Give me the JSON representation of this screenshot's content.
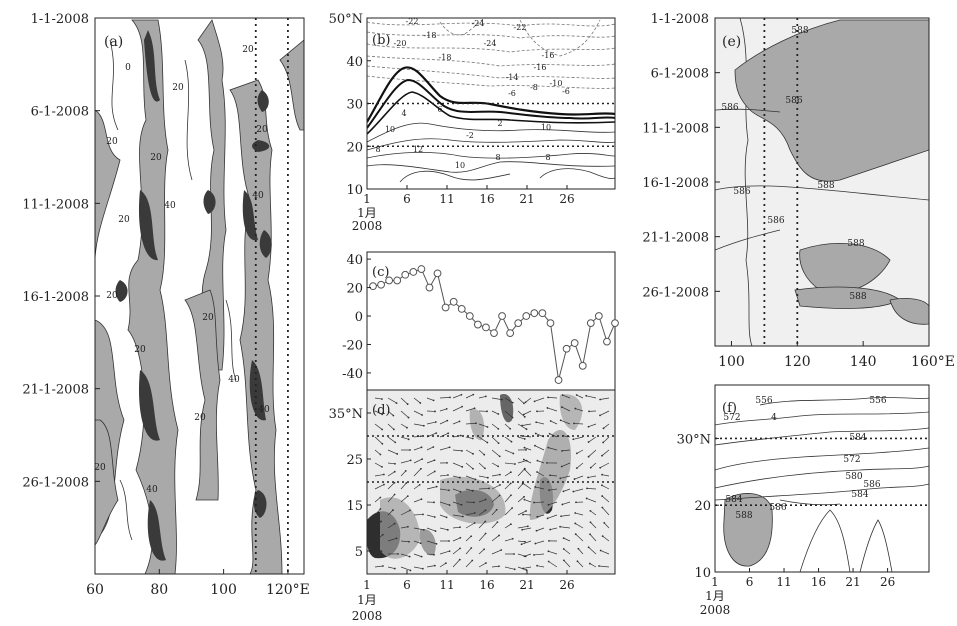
{
  "chart_data": [
    {
      "panel": "a",
      "type": "heatmap",
      "panel_label": "(a)",
      "x_ticks": [
        60,
        80,
        100,
        120
      ],
      "x_tick_labels": [
        "60",
        "80",
        "100",
        "120°E"
      ],
      "xlim": [
        60,
        125
      ],
      "y_tick_labels": [
        "1-1-2008",
        "6-1-2008",
        "11-1-2008",
        "16-1-2008",
        "21-1-2008",
        "26-1-2008"
      ],
      "y_ticks_day": [
        1,
        6,
        11,
        16,
        21,
        26
      ],
      "ylim_day": [
        1,
        31
      ],
      "contour_labels": [
        "0",
        "20",
        "20",
        "20",
        "20",
        "20",
        "20",
        "40",
        "40",
        "20",
        "20",
        "40",
        "20",
        "20",
        "40",
        "20",
        "40"
      ],
      "reference_lines_x": [
        110,
        120
      ],
      "shading": "values above 20 grey, above 40 dark"
    },
    {
      "panel": "b",
      "type": "heatmap",
      "panel_label": "(b)",
      "x_ticks": [
        1,
        6,
        11,
        16,
        21,
        26
      ],
      "x_tick_labels": [
        "1",
        "6",
        "11",
        "16",
        "21",
        "26"
      ],
      "x_caption": [
        "1月",
        "2008"
      ],
      "y_ticks": [
        10,
        20,
        30,
        40,
        50
      ],
      "y_tick_labels": [
        "10",
        "20",
        "30",
        "40",
        "50°N"
      ],
      "ylim": [
        10,
        50
      ],
      "contour_labels": [
        "-22",
        "-24",
        "-22",
        "-18",
        "-20",
        "-24",
        "-18",
        "-16",
        "-16",
        "-14",
        "-10",
        "-8",
        "-6",
        "-6",
        "6",
        "4",
        "2",
        "-2",
        "10",
        "10",
        "12",
        "8",
        "10",
        "8",
        "8"
      ],
      "reference_lines_y": [
        20,
        30
      ]
    },
    {
      "panel": "c",
      "type": "line",
      "panel_label": "(c)",
      "x": [
        1,
        2,
        3,
        4,
        5,
        6,
        7,
        8,
        9,
        10,
        11,
        12,
        13,
        14,
        15,
        16,
        17,
        18,
        19,
        20,
        21,
        22,
        23,
        24,
        25,
        26,
        27,
        28,
        29,
        30,
        31
      ],
      "values": [
        21,
        22,
        25,
        25,
        29,
        31,
        33,
        20,
        30,
        6,
        10,
        5,
        0,
        -6,
        -8,
        -12,
        0,
        -12,
        -5,
        0,
        2,
        2,
        -5,
        -45,
        -23,
        -19,
        -35,
        -5,
        0,
        -18,
        -5
      ],
      "y_ticks": [
        -40,
        -20,
        0,
        20,
        40
      ],
      "y_tick_labels": [
        "-40",
        "-20",
        "0",
        "20",
        "40"
      ],
      "ylim": [
        -52,
        45
      ]
    },
    {
      "panel": "d",
      "type": "heatmap",
      "panel_label": "(d)",
      "x_ticks": [
        1,
        6,
        11,
        16,
        21,
        26
      ],
      "x_tick_labels": [
        "1",
        "6",
        "11",
        "16",
        "21",
        "26"
      ],
      "x_caption": [
        "1月",
        "2008"
      ],
      "y_ticks": [
        5,
        15,
        25,
        35
      ],
      "y_tick_labels": [
        "5",
        "15",
        "25",
        "35°N"
      ],
      "ylim": [
        0,
        40
      ],
      "reference_lines_y": [
        20,
        30
      ],
      "overlay": "wind vectors"
    },
    {
      "panel": "e",
      "type": "heatmap",
      "panel_label": "(e)",
      "x_ticks": [
        100,
        120,
        140,
        160
      ],
      "x_tick_labels": [
        "100",
        "120",
        "140",
        "160°E"
      ],
      "xlim": [
        95,
        160
      ],
      "y_tick_labels": [
        "1-1-2008",
        "6-1-2008",
        "11-1-2008",
        "16-1-2008",
        "21-1-2008",
        "26-1-2008"
      ],
      "y_ticks_day": [
        1,
        6,
        11,
        16,
        21,
        26
      ],
      "ylim_day": [
        1,
        31
      ],
      "contour_labels": [
        "588",
        "586",
        "586",
        "588",
        "586",
        "586",
        "588",
        "588"
      ],
      "reference_lines_x": [
        110,
        120
      ]
    },
    {
      "panel": "f",
      "type": "heatmap",
      "panel_label": "(f)",
      "x_ticks": [
        1,
        6,
        11,
        16,
        21,
        26
      ],
      "x_tick_labels": [
        "1",
        "6",
        "11",
        "16",
        "21",
        "26"
      ],
      "x_caption": [
        "1月",
        "2008"
      ],
      "y_ticks": [
        10,
        20,
        30
      ],
      "y_tick_labels": [
        "10",
        "20",
        "30°N"
      ],
      "ylim": [
        10,
        38
      ],
      "contour_labels": [
        "556",
        "4",
        "556",
        "572",
        "584",
        "572",
        "580",
        "584",
        "586",
        "588",
        "586",
        "584"
      ],
      "reference_lines_y": [
        20,
        30
      ]
    }
  ]
}
